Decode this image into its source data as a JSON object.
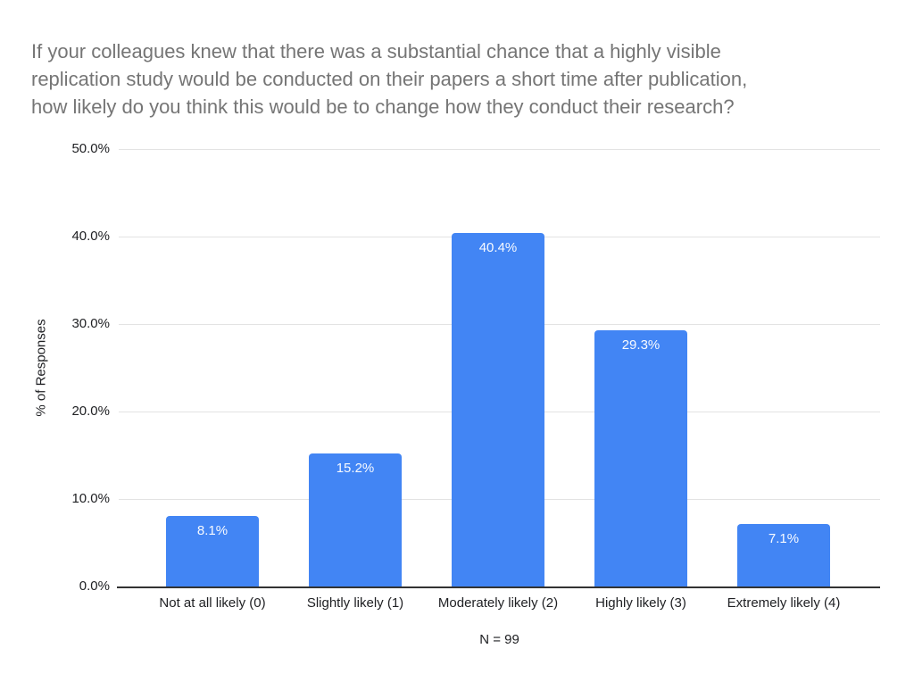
{
  "chart_data": {
    "type": "bar",
    "title": "If your colleagues knew that there was a substantial chance that a highly visible replication study would be conducted on their papers a short time after publication, how likely do you think this would be to change how they conduct their research?",
    "title_lines": [
      "If your colleagues knew that there was a substantial chance that a highly visible",
      "replication study would be conducted on their papers a short time after publication,",
      "how likely do you think this would be to change how they conduct their research?"
    ],
    "categories": [
      "Not at all likely (0)",
      "Slightly likely (1)",
      "Moderately likely (2)",
      "Highly likely (3)",
      "Extremely likely (4)"
    ],
    "values": [
      8.1,
      15.2,
      40.4,
      29.3,
      7.1
    ],
    "value_labels": [
      "8.1%",
      "15.2%",
      "40.4%",
      "29.3%",
      "7.1%"
    ],
    "xlabel": "",
    "ylabel": "% of Responses",
    "ylim": [
      0,
      50
    ],
    "ytick_values": [
      0,
      10,
      20,
      30,
      40,
      50
    ],
    "ytick_labels": [
      "0.0%",
      "10.0%",
      "20.0%",
      "30.0%",
      "40.0%",
      "50.0%"
    ],
    "grid": true,
    "legend": "none",
    "footnote": "N = 99",
    "colors": {
      "bar": "#4285f4",
      "bar_value_label": "#ffffff",
      "title": "#757575",
      "axis_text": "#202124",
      "gridline": "#e3e3e3",
      "baseline": "#333333",
      "background": "#ffffff"
    }
  }
}
